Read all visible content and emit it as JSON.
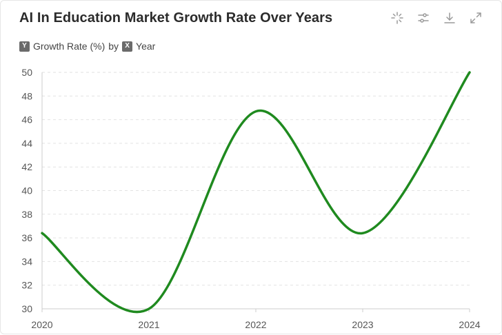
{
  "header": {
    "title": "AI In Education Market Growth Rate Over Years",
    "toolbar": [
      {
        "icon": "sparkle-icon"
      },
      {
        "icon": "filter-sliders-icon"
      },
      {
        "icon": "download-icon"
      },
      {
        "icon": "expand-icon"
      }
    ]
  },
  "subtitle": {
    "y_chip": "Y",
    "y_label": "Growth Rate (%)",
    "by": "by",
    "x_chip": "X",
    "x_label": "Year"
  },
  "colors": {
    "line": "#1f8a1f",
    "grid": "#e2e2e2",
    "axis": "#cccccc"
  },
  "chart_data": {
    "type": "line",
    "title": "AI In Education Market Growth Rate Over Years",
    "xlabel": "Year",
    "ylabel": "Growth Rate (%)",
    "categories": [
      "2020",
      "2021",
      "2022",
      "2023",
      "2024"
    ],
    "series": [
      {
        "values": [
          36.4,
          30.0,
          46.7,
          36.4,
          50.0
        ]
      }
    ],
    "ylim": [
      30,
      50
    ],
    "yticks": [
      30,
      32,
      34,
      36,
      38,
      40,
      42,
      44,
      46,
      48,
      50
    ],
    "grid": true,
    "legend": "none"
  }
}
